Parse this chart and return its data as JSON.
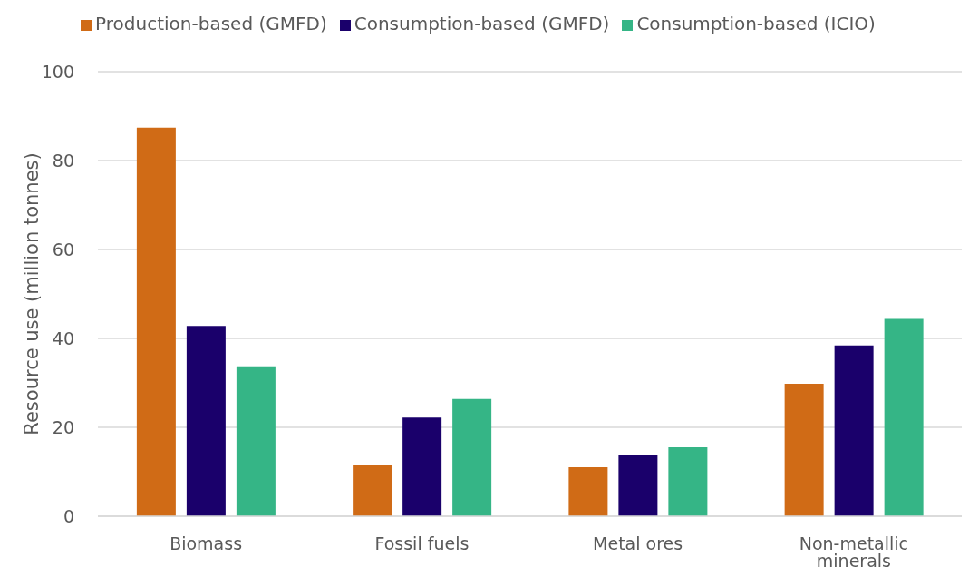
{
  "chart_data": {
    "type": "bar",
    "ylabel": "Resource use (million tonnes)",
    "categories": [
      "Biomass",
      "Fossil fuels",
      "Metal ores",
      "Non-metallic minerals"
    ],
    "series": [
      {
        "name": "Production-based (GMFD)",
        "color": "#d06b16",
        "values": [
          87.4,
          11.6,
          11.0,
          29.8
        ]
      },
      {
        "name": "Consumption-based (GMFD)",
        "color": "#1a006b",
        "values": [
          42.8,
          22.2,
          13.7,
          38.4
        ]
      },
      {
        "name": "Consumption-based (ICIO)",
        "color": "#35b586",
        "values": [
          33.7,
          26.4,
          15.5,
          44.4
        ]
      }
    ],
    "ylim": [
      0,
      100
    ],
    "yticks": [
      0,
      20,
      40,
      60,
      80,
      100
    ],
    "grid": "y",
    "legend": "top"
  }
}
